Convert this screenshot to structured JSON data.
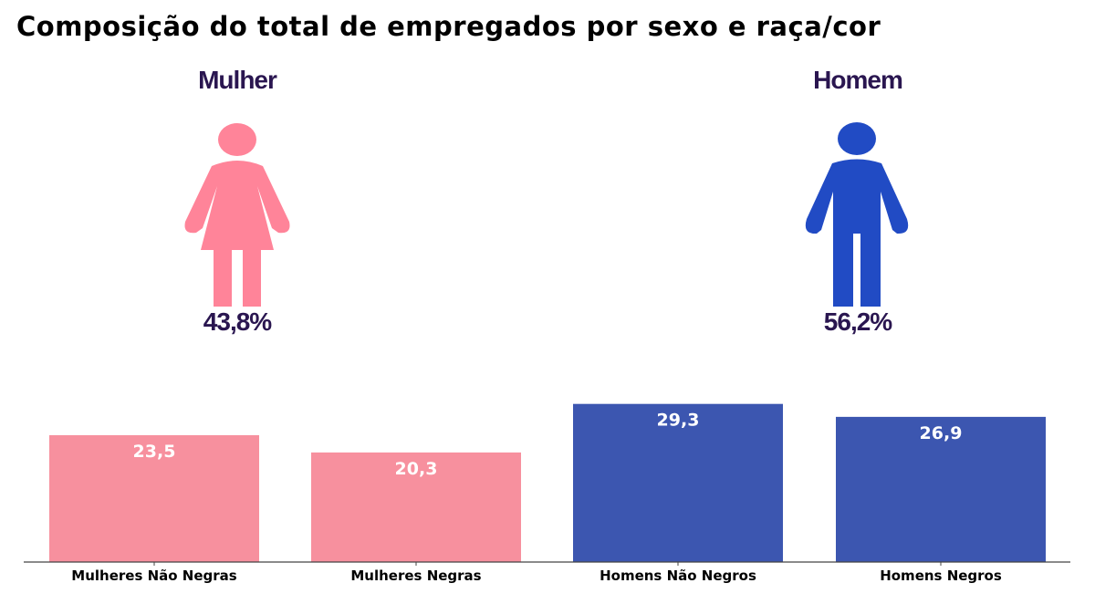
{
  "title": "Composição do total de empregados por sexo e raça/cor",
  "groups": [
    {
      "label": "Mulher",
      "percent": "43,8%",
      "icon": "woman-icon",
      "color": "#ff8499"
    },
    {
      "label": "Homem",
      "percent": "56,2%",
      "icon": "man-icon",
      "color": "#214bc4"
    }
  ],
  "chart_data": {
    "type": "bar",
    "categories": [
      "Mulheres Não Negras",
      "Mulheres Negras",
      "Homens Não Negros",
      "Homens Negros"
    ],
    "values": [
      23.5,
      20.3,
      29.3,
      26.9
    ],
    "value_labels": [
      "23,5",
      "20,3",
      "29,3",
      "26,9"
    ],
    "colors": [
      "#f7909e",
      "#f7909e",
      "#3c56b0",
      "#3c56b0"
    ],
    "ylim": [
      0,
      30
    ],
    "grid": false
  }
}
